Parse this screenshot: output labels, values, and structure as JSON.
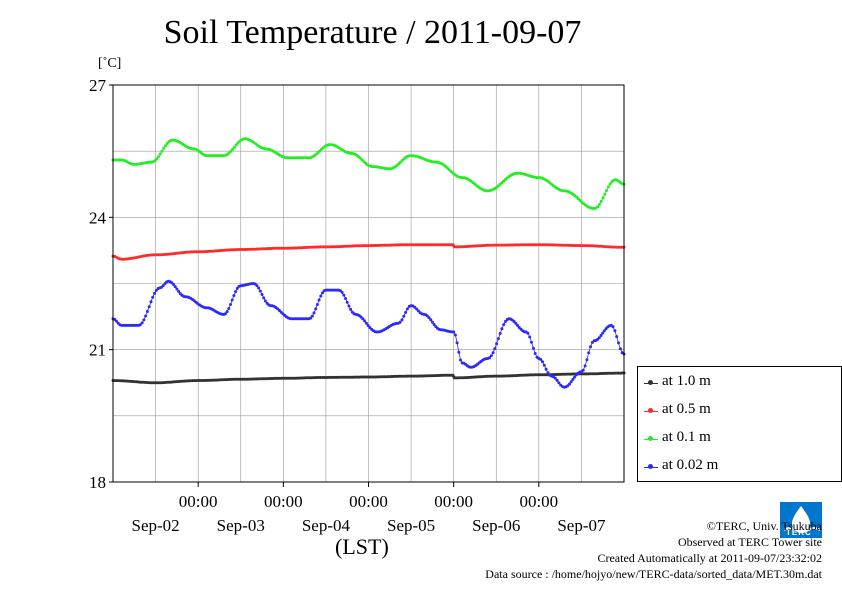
{
  "chart_data": {
    "type": "scatter",
    "title": "Soil Temperature / 2011-09-07",
    "ylabel": "[˚C]",
    "xlabel": "(LST)",
    "ylim": [
      18,
      27
    ],
    "yticks": [
      18,
      21,
      24,
      27
    ],
    "xlim_days": [
      0,
      6
    ],
    "x_time_ticks": [
      "00:00",
      "00:00",
      "00:00",
      "00:00",
      "00:00"
    ],
    "x_date_labels": [
      "Sep-02",
      "Sep-03",
      "Sep-04",
      "Sep-05",
      "Sep-06",
      "Sep-07"
    ],
    "grid": true,
    "legend_position": "lower-right-outside",
    "series": [
      {
        "name": "at 1.0 m",
        "color": "#333333",
        "x": [
          0.0,
          0.5,
          1.0,
          1.5,
          2.0,
          2.5,
          3.0,
          3.5,
          3.99,
          4.01,
          4.5,
          5.0,
          5.5,
          6.0
        ],
        "y": [
          20.3,
          20.25,
          20.3,
          20.33,
          20.35,
          20.37,
          20.38,
          20.4,
          20.42,
          20.36,
          20.4,
          20.43,
          20.45,
          20.47
        ]
      },
      {
        "name": "at 0.5 m",
        "color": "#ff2a2a",
        "x": [
          0.0,
          0.1,
          0.5,
          1.0,
          1.5,
          2.0,
          2.5,
          3.0,
          3.5,
          3.99,
          4.01,
          4.5,
          5.0,
          5.5,
          6.0
        ],
        "y": [
          23.12,
          23.05,
          23.15,
          23.22,
          23.27,
          23.3,
          23.33,
          23.36,
          23.38,
          23.38,
          23.33,
          23.37,
          23.38,
          23.36,
          23.32
        ]
      },
      {
        "name": "at 0.1 m",
        "color": "#22ee22",
        "x": [
          0.0,
          0.1,
          0.25,
          0.45,
          0.7,
          0.95,
          1.1,
          1.3,
          1.55,
          1.8,
          2.05,
          2.3,
          2.55,
          2.8,
          3.05,
          3.25,
          3.5,
          3.8,
          4.1,
          4.4,
          4.75,
          5.0,
          5.3,
          5.65,
          5.9,
          6.0
        ],
        "y": [
          25.3,
          25.3,
          25.2,
          25.25,
          25.75,
          25.55,
          25.4,
          25.4,
          25.78,
          25.55,
          25.35,
          25.35,
          25.65,
          25.45,
          25.15,
          25.1,
          25.4,
          25.25,
          24.9,
          24.6,
          25.0,
          24.9,
          24.6,
          24.2,
          24.85,
          24.75
        ]
      },
      {
        "name": "at 0.02 m",
        "color": "#2a2aff",
        "x": [
          0.0,
          0.1,
          0.3,
          0.55,
          0.65,
          0.85,
          1.1,
          1.3,
          1.5,
          1.65,
          1.85,
          2.1,
          2.3,
          2.5,
          2.65,
          2.85,
          3.1,
          3.35,
          3.5,
          3.65,
          3.85,
          4.0,
          4.1,
          4.2,
          4.4,
          4.65,
          4.85,
          5.0,
          5.15,
          5.3,
          5.5,
          5.65,
          5.85,
          6.0
        ],
        "y": [
          21.7,
          21.55,
          21.55,
          22.4,
          22.55,
          22.2,
          21.95,
          21.8,
          22.45,
          22.5,
          22.0,
          21.7,
          21.7,
          22.35,
          22.35,
          21.8,
          21.4,
          21.6,
          22.0,
          21.8,
          21.45,
          21.4,
          20.7,
          20.6,
          20.8,
          21.7,
          21.4,
          20.8,
          20.4,
          20.15,
          20.5,
          21.2,
          21.55,
          20.9
        ]
      }
    ]
  },
  "credits": {
    "line1": "©TERC, Univ. Tsukuba",
    "line2": "Observed at TERC Tower site",
    "line3": "Created Automatically at 2011-09-07/23:32:02",
    "line4": "Data source : /home/hojyo/new/TERC-data/sorted_data/MET.30m.dat"
  },
  "logo_text": "TERC",
  "logo_color": "#0077cc"
}
